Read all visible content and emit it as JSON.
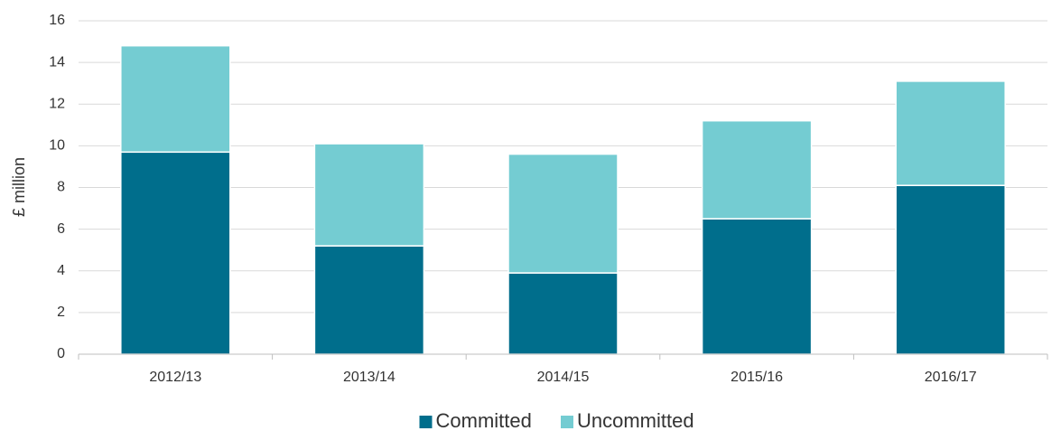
{
  "chart_data": {
    "type": "stacked_bar",
    "y_label": "£ million",
    "categories": [
      "2012/13",
      "2013/14",
      "2014/15",
      "2015/16",
      "2016/17"
    ],
    "series": [
      {
        "name": "Committed",
        "color": "#006e8c",
        "values": [
          9.7,
          5.2,
          3.9,
          6.5,
          8.1
        ]
      },
      {
        "name": "Uncommitted",
        "color": "#74ccd2",
        "values": [
          5.1,
          4.9,
          5.7,
          4.7,
          5.0
        ]
      }
    ],
    "ylim": [
      0,
      16
    ],
    "yticks": [
      0,
      2,
      4,
      6,
      8,
      10,
      12,
      14,
      16
    ],
    "grid": true,
    "legend": "bottom"
  }
}
